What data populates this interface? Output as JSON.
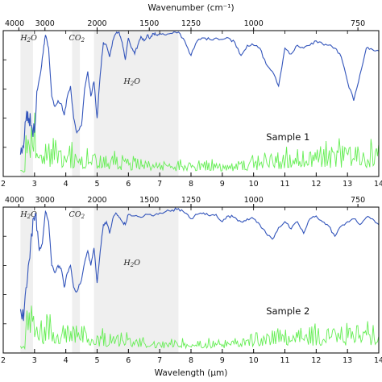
{
  "chart_data": {
    "type": "line",
    "top_axis": {
      "label": "Wavenumber (cm⁻¹)",
      "ticks": [
        "4000",
        "3000",
        "2000",
        "1500",
        "1250",
        "1000",
        "750"
      ]
    },
    "bottom_axis": {
      "label": "Wavelength (μm)",
      "ticks": [
        "2",
        "3",
        "4",
        "5",
        "6",
        "7",
        "8",
        "9",
        "10",
        "11",
        "12",
        "13",
        "14"
      ],
      "xlim": [
        2,
        14
      ]
    },
    "absorption_bands": [
      {
        "label": "H2O",
        "range_um": [
          2.55,
          2.95
        ]
      },
      {
        "label": "CO2",
        "range_um": [
          4.2,
          4.45
        ]
      },
      {
        "label": "H2O",
        "range_um": [
          4.9,
          7.6
        ]
      }
    ],
    "panels": [
      {
        "label": "Sample 1",
        "blue_series": {
          "x": [
            2.55,
            2.65,
            2.75,
            2.82,
            2.9,
            3.0,
            3.1,
            3.2,
            3.3,
            3.35,
            3.45,
            3.55,
            3.65,
            3.75,
            3.85,
            3.95,
            4.05,
            4.15,
            4.25,
            4.35,
            4.5,
            4.6,
            4.7,
            4.8,
            4.9,
            5.0,
            5.1,
            5.2,
            5.3,
            5.4,
            5.5,
            5.6,
            5.7,
            5.8,
            5.9,
            6.0,
            6.1,
            6.2,
            6.3,
            6.4,
            6.5,
            6.6,
            6.7,
            6.8,
            6.9,
            7.0,
            7.2,
            7.4,
            7.6,
            7.8,
            8.0,
            8.2,
            8.4,
            8.6,
            8.8,
            9.0,
            9.2,
            9.4,
            9.6,
            9.8,
            10.0,
            10.2,
            10.4,
            10.6,
            10.8,
            11.0,
            11.2,
            11.4,
            11.6,
            11.8,
            12.0,
            12.2,
            12.4,
            12.6,
            12.8,
            13.0,
            13.2,
            13.4,
            13.6,
            13.8,
            14.0
          ],
          "y": [
            0.15,
            0.2,
            0.45,
            0.4,
            0.35,
            0.3,
            0.6,
            0.72,
            0.9,
            0.97,
            0.88,
            0.55,
            0.48,
            0.52,
            0.5,
            0.42,
            0.55,
            0.62,
            0.4,
            0.3,
            0.35,
            0.6,
            0.72,
            0.55,
            0.65,
            0.4,
            0.7,
            0.92,
            0.9,
            0.82,
            0.93,
            0.98,
            0.99,
            0.92,
            0.8,
            0.95,
            0.88,
            0.84,
            0.9,
            0.96,
            0.93,
            0.97,
            0.95,
            0.98,
            0.97,
            0.98,
            0.97,
            0.98,
            0.99,
            0.93,
            0.83,
            0.93,
            0.95,
            0.94,
            0.95,
            0.94,
            0.95,
            0.92,
            0.83,
            0.9,
            0.9,
            0.88,
            0.77,
            0.72,
            0.62,
            0.88,
            0.84,
            0.9,
            0.88,
            0.9,
            0.93,
            0.91,
            0.9,
            0.88,
            0.82,
            0.65,
            0.52,
            0.7,
            0.88,
            0.87,
            0.86
          ]
        }
      },
      {
        "label": "Sample 2",
        "blue_series": {
          "x": [
            2.55,
            2.65,
            2.75,
            2.85,
            2.95,
            3.05,
            3.15,
            3.25,
            3.35,
            3.45,
            3.55,
            3.65,
            3.75,
            3.85,
            3.95,
            4.05,
            4.15,
            4.25,
            4.35,
            4.5,
            4.6,
            4.7,
            4.8,
            4.9,
            5.0,
            5.1,
            5.2,
            5.3,
            5.4,
            5.5,
            5.6,
            5.7,
            5.8,
            5.9,
            6.0,
            6.2,
            6.4,
            6.6,
            6.8,
            7.0,
            7.2,
            7.4,
            7.6,
            7.8,
            8.0,
            8.2,
            8.4,
            8.6,
            8.8,
            9.0,
            9.2,
            9.4,
            9.6,
            9.8,
            10.0,
            10.2,
            10.4,
            10.6,
            10.8,
            11.0,
            11.2,
            11.4,
            11.6,
            11.8,
            12.0,
            12.2,
            12.4,
            12.6,
            12.8,
            13.0,
            13.2,
            13.4,
            13.6,
            13.8,
            14.0
          ],
          "y": [
            0.3,
            0.22,
            0.45,
            0.65,
            0.92,
            0.95,
            0.7,
            0.75,
            0.97,
            0.9,
            0.6,
            0.55,
            0.6,
            0.58,
            0.45,
            0.55,
            0.6,
            0.45,
            0.42,
            0.5,
            0.62,
            0.7,
            0.6,
            0.72,
            0.48,
            0.7,
            0.88,
            0.9,
            0.82,
            0.92,
            0.96,
            0.93,
            0.9,
            0.88,
            0.95,
            0.94,
            0.93,
            0.95,
            0.94,
            0.96,
            0.97,
            0.98,
            0.99,
            0.96,
            0.92,
            0.95,
            0.96,
            0.94,
            0.95,
            0.9,
            0.94,
            0.93,
            0.9,
            0.92,
            0.92,
            0.88,
            0.82,
            0.78,
            0.86,
            0.9,
            0.85,
            0.9,
            0.82,
            0.92,
            0.94,
            0.9,
            0.87,
            0.8,
            0.87,
            0.9,
            0.92,
            0.88,
            0.93,
            0.92,
            0.88
          ]
        }
      }
    ],
    "colors": {
      "blue_series": "#3355bb",
      "green_series": "#66ee55",
      "band_fill": "#e8e8e8"
    }
  }
}
